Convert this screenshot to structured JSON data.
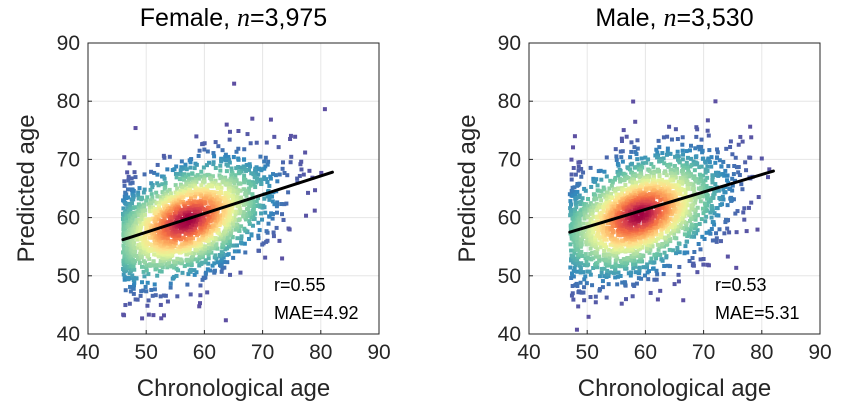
{
  "chart_data": [
    {
      "type": "scatter",
      "title_prefix": "Female, ",
      "title_n_symbol": "n",
      "title_n_value": "=3,975",
      "xlabel": "Chronological age",
      "ylabel": "Predicted age",
      "xlim": [
        40,
        90
      ],
      "ylim": [
        40,
        90
      ],
      "xticks": [
        "40",
        "50",
        "60",
        "70",
        "80",
        "90"
      ],
      "yticks": [
        "40",
        "50",
        "60",
        "70",
        "80",
        "90"
      ],
      "grid": true,
      "n": 3975,
      "density_colormap": "spectral (blue low → red high)",
      "cloud": {
        "x_range": [
          46,
          82
        ],
        "center_x": 57,
        "center_y": 59.5,
        "y_spread": 4.8
      },
      "fit_line": {
        "x": [
          46,
          82
        ],
        "y": [
          56.2,
          67.8
        ]
      },
      "stats": {
        "r": "r=0.55",
        "mae": "MAE=4.92"
      }
    },
    {
      "type": "scatter",
      "title_prefix": "Male, ",
      "title_n_symbol": "n",
      "title_n_value": "=3,530",
      "xlabel": "Chronological age",
      "ylabel": "Predicted age",
      "xlim": [
        40,
        90
      ],
      "ylim": [
        40,
        90
      ],
      "xticks": [
        "40",
        "50",
        "60",
        "70",
        "80",
        "90"
      ],
      "yticks": [
        "40",
        "50",
        "60",
        "70",
        "80",
        "90"
      ],
      "grid": true,
      "n": 3530,
      "density_colormap": "spectral (blue low → red high)",
      "cloud": {
        "x_range": [
          47,
          82
        ],
        "center_x": 59,
        "center_y": 60.5,
        "y_spread": 5.0
      },
      "fit_line": {
        "x": [
          47,
          82
        ],
        "y": [
          57.5,
          68.0
        ]
      },
      "stats": {
        "r": "r=0.53",
        "mae": "MAE=5.31"
      }
    }
  ],
  "colors": {
    "low_density": "#5e4fa2",
    "mid_density": "#66c2a5",
    "high_density": "#9e0142",
    "fit_line": "#000000",
    "grid": "#e6e6e6",
    "axis": "#262626"
  }
}
